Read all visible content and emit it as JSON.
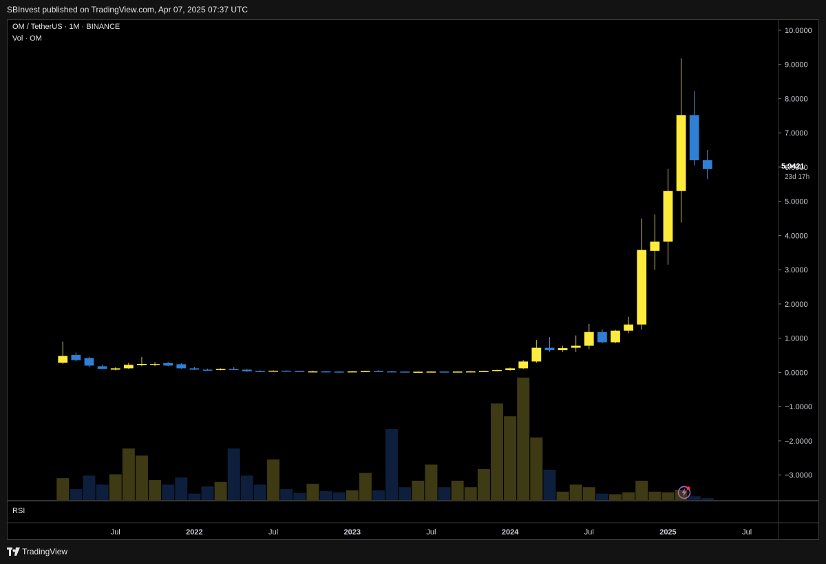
{
  "header": {
    "published_line": "SBInvest published on TradingView.com, Apr 07, 2025 07:37 UTC"
  },
  "legend": {
    "symbol_line": "OM / TetherUS · 1M · BINANCE",
    "volume_line": "Vol · OM"
  },
  "rsi_pane": {
    "label": "RSI"
  },
  "price_badge": {
    "value": "5.9421",
    "countdown": "23d 17h"
  },
  "footer": {
    "brand": "TradingView"
  },
  "colors": {
    "up": "#ffeb3b",
    "down": "#2f7fd4",
    "vol_up": "#3d3a14",
    "vol_down": "#0d1f3d",
    "background": "#000000"
  },
  "chart_data": {
    "type": "candlestick",
    "interval": "1M",
    "price_axis": {
      "ticks": [
        "10.0000",
        "9.0000",
        "8.0000",
        "7.0000",
        "6.0000",
        "5.0000",
        "4.0000",
        "3.0000",
        "2.0000",
        "1.0000",
        "0.0000",
        "−1.0000",
        "−2.0000",
        "−3.0000"
      ],
      "range": [
        -3.75,
        10.3
      ]
    },
    "time_axis": {
      "labels": [
        "Jul",
        "2022",
        "Jul",
        "2023",
        "Jul",
        "2024",
        "Jul",
        "2025",
        "Jul"
      ],
      "label_months": [
        6,
        12,
        18,
        24,
        30,
        36,
        42,
        48,
        54
      ],
      "start_month": "Jan 2021",
      "range_months": [
        -2.2,
        56.4
      ]
    },
    "series": [
      {
        "month": "Mar 2021",
        "o": 0.28,
        "h": 0.9,
        "l": 0.25,
        "c": 0.48,
        "v": 0.34
      },
      {
        "month": "Apr 2021",
        "o": 0.51,
        "h": 0.58,
        "l": 0.33,
        "c": 0.36,
        "v": 0.17
      },
      {
        "month": "May 2021",
        "o": 0.42,
        "h": 0.45,
        "l": 0.15,
        "c": 0.2,
        "v": 0.38
      },
      {
        "month": "Jun 2021",
        "o": 0.18,
        "h": 0.22,
        "l": 0.09,
        "c": 0.1,
        "v": 0.24
      },
      {
        "month": "Jul 2021",
        "o": 0.08,
        "h": 0.15,
        "l": 0.06,
        "c": 0.12,
        "v": 0.4
      },
      {
        "month": "Aug 2021",
        "o": 0.12,
        "h": 0.28,
        "l": 0.1,
        "c": 0.22,
        "v": 0.8
      },
      {
        "month": "Sep 2021",
        "o": 0.21,
        "h": 0.45,
        "l": 0.18,
        "c": 0.25,
        "v": 0.69
      },
      {
        "month": "Oct 2021",
        "o": 0.22,
        "h": 0.3,
        "l": 0.18,
        "c": 0.25,
        "v": 0.31
      },
      {
        "month": "Nov 2021",
        "o": 0.27,
        "h": 0.31,
        "l": 0.18,
        "c": 0.2,
        "v": 0.24
      },
      {
        "month": "Dec 2021",
        "o": 0.24,
        "h": 0.27,
        "l": 0.1,
        "c": 0.12,
        "v": 0.35
      },
      {
        "month": "Jan 2022",
        "o": 0.12,
        "h": 0.16,
        "l": 0.07,
        "c": 0.08,
        "v": 0.1
      },
      {
        "month": "Feb 2022",
        "o": 0.08,
        "h": 0.11,
        "l": 0.05,
        "c": 0.07,
        "v": 0.21
      },
      {
        "month": "Mar 2022",
        "o": 0.07,
        "h": 0.12,
        "l": 0.06,
        "c": 0.1,
        "v": 0.28
      },
      {
        "month": "Apr 2022",
        "o": 0.1,
        "h": 0.15,
        "l": 0.07,
        "c": 0.08,
        "v": 0.8
      },
      {
        "month": "May 2022",
        "o": 0.08,
        "h": 0.1,
        "l": 0.02,
        "c": 0.03,
        "v": 0.38
      },
      {
        "month": "Jun 2022",
        "o": 0.04,
        "h": 0.06,
        "l": 0.02,
        "c": 0.03,
        "v": 0.24
      },
      {
        "month": "Jul 2022",
        "o": 0.03,
        "h": 0.06,
        "l": 0.02,
        "c": 0.05,
        "v": 0.63
      },
      {
        "month": "Aug 2022",
        "o": 0.05,
        "h": 0.06,
        "l": 0.03,
        "c": 0.04,
        "v": 0.17
      },
      {
        "month": "Sep 2022",
        "o": 0.04,
        "h": 0.05,
        "l": 0.02,
        "c": 0.03,
        "v": 0.11
      },
      {
        "month": "Oct 2022",
        "o": 0.03,
        "h": 0.05,
        "l": 0.02,
        "c": 0.03,
        "v": 0.25
      },
      {
        "month": "Nov 2022",
        "o": 0.03,
        "h": 0.04,
        "l": 0.02,
        "c": 0.025,
        "v": 0.14
      },
      {
        "month": "Dec 2022",
        "o": 0.025,
        "h": 0.04,
        "l": 0.02,
        "c": 0.02,
        "v": 0.12
      },
      {
        "month": "Jan 2023",
        "o": 0.02,
        "h": 0.04,
        "l": 0.02,
        "c": 0.03,
        "v": 0.15
      },
      {
        "month": "Feb 2023",
        "o": 0.03,
        "h": 0.05,
        "l": 0.02,
        "c": 0.04,
        "v": 0.42
      },
      {
        "month": "Mar 2023",
        "o": 0.04,
        "h": 0.06,
        "l": 0.02,
        "c": 0.03,
        "v": 0.15
      },
      {
        "month": "Apr 2023",
        "o": 0.03,
        "h": 0.04,
        "l": 0.02,
        "c": 0.025,
        "v": 1.1
      },
      {
        "month": "May 2023",
        "o": 0.025,
        "h": 0.03,
        "l": 0.02,
        "c": 0.02,
        "v": 0.2
      },
      {
        "month": "Jun 2023",
        "o": 0.02,
        "h": 0.03,
        "l": 0.015,
        "c": 0.02,
        "v": 0.3
      },
      {
        "month": "Jul 2023",
        "o": 0.02,
        "h": 0.03,
        "l": 0.015,
        "c": 0.025,
        "v": 0.55
      },
      {
        "month": "Aug 2023",
        "o": 0.025,
        "h": 0.03,
        "l": 0.015,
        "c": 0.02,
        "v": 0.2
      },
      {
        "month": "Sep 2023",
        "o": 0.02,
        "h": 0.03,
        "l": 0.015,
        "c": 0.025,
        "v": 0.3
      },
      {
        "month": "Oct 2023",
        "o": 0.025,
        "h": 0.04,
        "l": 0.02,
        "c": 0.03,
        "v": 0.2
      },
      {
        "month": "Nov 2023",
        "o": 0.03,
        "h": 0.05,
        "l": 0.02,
        "c": 0.04,
        "v": 0.48
      },
      {
        "month": "Dec 2023",
        "o": 0.04,
        "h": 0.08,
        "l": 0.03,
        "c": 0.07,
        "v": 1.5
      },
      {
        "month": "Jan 2024",
        "o": 0.07,
        "h": 0.14,
        "l": 0.05,
        "c": 0.12,
        "v": 1.3
      },
      {
        "month": "Feb 2024",
        "o": 0.12,
        "h": 0.36,
        "l": 0.1,
        "c": 0.32,
        "v": 1.9
      },
      {
        "month": "Mar 2024",
        "o": 0.32,
        "h": 0.95,
        "l": 0.28,
        "c": 0.72,
        "v": 0.97
      },
      {
        "month": "Apr 2024",
        "o": 0.72,
        "h": 1.03,
        "l": 0.6,
        "c": 0.65,
        "v": 0.47
      },
      {
        "month": "May 2024",
        "o": 0.65,
        "h": 0.78,
        "l": 0.6,
        "c": 0.71,
        "v": 0.13
      },
      {
        "month": "Jun 2024",
        "o": 0.72,
        "h": 1.08,
        "l": 0.6,
        "c": 0.78,
        "v": 0.24
      },
      {
        "month": "Jul 2024",
        "o": 0.78,
        "h": 1.42,
        "l": 0.68,
        "c": 1.18,
        "v": 0.2
      },
      {
        "month": "Aug 2024",
        "o": 1.18,
        "h": 1.26,
        "l": 0.85,
        "c": 0.88,
        "v": 0.1
      },
      {
        "month": "Sep 2024",
        "o": 0.88,
        "h": 1.25,
        "l": 0.85,
        "c": 1.22,
        "v": 0.09
      },
      {
        "month": "Oct 2024",
        "o": 1.22,
        "h": 1.62,
        "l": 1.15,
        "c": 1.4,
        "v": 0.12
      },
      {
        "month": "Nov 2024",
        "o": 1.4,
        "h": 4.5,
        "l": 1.25,
        "c": 3.58,
        "v": 0.3
      },
      {
        "month": "Dec 2024",
        "o": 3.55,
        "h": 4.62,
        "l": 3.0,
        "c": 3.82,
        "v": 0.13
      },
      {
        "month": "Jan 2025",
        "o": 3.82,
        "h": 5.95,
        "l": 3.15,
        "c": 5.3,
        "v": 0.12
      },
      {
        "month": "Feb 2025",
        "o": 5.3,
        "h": 9.18,
        "l": 4.38,
        "c": 7.52,
        "v": 0.16
      },
      {
        "month": "Mar 2025",
        "o": 7.52,
        "h": 8.22,
        "l": 6.05,
        "c": 6.2,
        "v": 0.06
      },
      {
        "month": "Apr 2025",
        "o": 6.2,
        "h": 6.5,
        "l": 5.65,
        "c": 5.9421,
        "v": 0.03
      }
    ]
  }
}
